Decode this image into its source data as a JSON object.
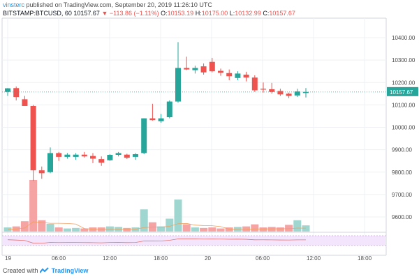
{
  "header": {
    "user": "vinsterc",
    "published": "published on TradingView.com, September 20, 2019 11:26:10 UTC",
    "symbol": "BITSTAMP:BTCUSD, 60",
    "last": "10157.67",
    "change_arrow": "▼",
    "change": "−113.86 (−1.11%)",
    "o_label": "O:",
    "o_value": "10153.19",
    "h_label": "H:",
    "h_value": "10175.00",
    "l_label": "L:",
    "l_value": "10132.99",
    "c_label": "C:",
    "c_value": "10157.67"
  },
  "footer": {
    "created_with": "Created with",
    "brand": "TradingView"
  },
  "colors": {
    "up": "#26a69a",
    "down": "#ef5350",
    "up_vol": "#9fd6cf",
    "down_vol": "#f5a3a3",
    "grid": "#eef0f3",
    "price_line": "#26a69a",
    "osc_bg": "#f3e5fc"
  },
  "chart_data": {
    "type": "candlestick",
    "interval": "60",
    "price_scale": {
      "min": 9500,
      "max": 10450,
      "ticks": [
        "10400.00",
        "10300.00",
        "10200.00",
        "10100.00",
        "10000.00",
        "9900.00",
        "9800.00",
        "9700.00",
        "9600.00"
      ]
    },
    "last_price_label": "10157.67",
    "time_labels": [
      "19",
      "06:00",
      "12:00",
      "18:00",
      "20",
      "06:00",
      "12:00",
      "18:00"
    ],
    "candles": [
      {
        "o": 10158,
        "h": 10175,
        "l": 10140,
        "c": 10174
      },
      {
        "o": 10175,
        "h": 10182,
        "l": 10120,
        "c": 10135
      },
      {
        "o": 10125,
        "h": 10140,
        "l": 10100,
        "c": 10095
      },
      {
        "o": 10095,
        "h": 10100,
        "l": 9760,
        "c": 9808
      },
      {
        "o": 9808,
        "h": 9825,
        "l": 9770,
        "c": 9795
      },
      {
        "o": 9800,
        "h": 9910,
        "l": 9795,
        "c": 9885
      },
      {
        "o": 9885,
        "h": 9890,
        "l": 9850,
        "c": 9868
      },
      {
        "o": 9868,
        "h": 9885,
        "l": 9860,
        "c": 9878
      },
      {
        "o": 9868,
        "h": 9885,
        "l": 9855,
        "c": 9878
      },
      {
        "o": 9878,
        "h": 9890,
        "l": 9865,
        "c": 9870
      },
      {
        "o": 9872,
        "h": 9885,
        "l": 9840,
        "c": 9860
      },
      {
        "o": 9858,
        "h": 9870,
        "l": 9828,
        "c": 9842
      },
      {
        "o": 9853,
        "h": 9880,
        "l": 9850,
        "c": 9877
      },
      {
        "o": 9877,
        "h": 9890,
        "l": 9870,
        "c": 9885
      },
      {
        "o": 9878,
        "h": 9882,
        "l": 9858,
        "c": 9864
      },
      {
        "o": 9868,
        "h": 9885,
        "l": 9855,
        "c": 9880
      },
      {
        "o": 9885,
        "h": 10040,
        "l": 9880,
        "c": 10040
      },
      {
        "o": 10040,
        "h": 10105,
        "l": 10030,
        "c": 10032
      },
      {
        "o": 10027,
        "h": 10060,
        "l": 10020,
        "c": 10040
      },
      {
        "o": 10045,
        "h": 10120,
        "l": 10040,
        "c": 10115
      },
      {
        "o": 10115,
        "h": 10380,
        "l": 10110,
        "c": 10265
      },
      {
        "o": 10265,
        "h": 10315,
        "l": 10255,
        "c": 10258
      },
      {
        "o": 10255,
        "h": 10275,
        "l": 10240,
        "c": 10265
      },
      {
        "o": 10272,
        "h": 10285,
        "l": 10235,
        "c": 10245
      },
      {
        "o": 10292,
        "h": 10310,
        "l": 10245,
        "c": 10250
      },
      {
        "o": 10252,
        "h": 10262,
        "l": 10230,
        "c": 10243
      },
      {
        "o": 10242,
        "h": 10258,
        "l": 10210,
        "c": 10228
      },
      {
        "o": 10220,
        "h": 10250,
        "l": 10210,
        "c": 10240
      },
      {
        "o": 10235,
        "h": 10248,
        "l": 10205,
        "c": 10222
      },
      {
        "o": 10222,
        "h": 10232,
        "l": 10158,
        "c": 10165
      },
      {
        "o": 10172,
        "h": 10200,
        "l": 10155,
        "c": 10168
      },
      {
        "o": 10170,
        "h": 10198,
        "l": 10150,
        "c": 10158
      },
      {
        "o": 10162,
        "h": 10172,
        "l": 10140,
        "c": 10147
      },
      {
        "o": 10150,
        "h": 10155,
        "l": 10130,
        "c": 10140
      },
      {
        "o": 10142,
        "h": 10172,
        "l": 10135,
        "c": 10160
      },
      {
        "o": 10153,
        "h": 10175,
        "l": 10133,
        "c": 10158
      }
    ],
    "volume_relative": [
      0.08,
      0.1,
      0.2,
      1.0,
      0.22,
      0.15,
      0.08,
      0.06,
      0.07,
      0.06,
      0.08,
      0.08,
      0.1,
      0.09,
      0.07,
      0.08,
      0.43,
      0.18,
      0.1,
      0.25,
      0.62,
      0.14,
      0.08,
      0.07,
      0.08,
      0.06,
      0.08,
      0.09,
      0.1,
      0.14,
      0.08,
      0.09,
      0.08,
      0.13,
      0.22,
      0.12
    ]
  }
}
